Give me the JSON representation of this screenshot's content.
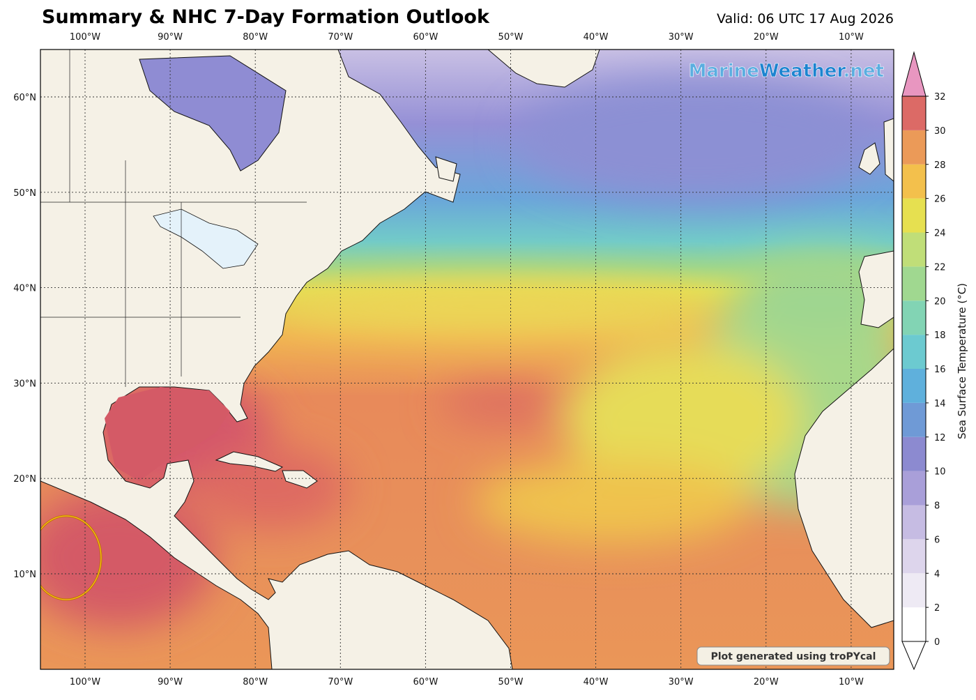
{
  "header": {
    "title": "Summary & NHC 7-Day Formation Outlook",
    "valid": "Valid: 06 UTC 17 Aug 2026"
  },
  "map": {
    "lon_labels": [
      "100°W",
      "90°W",
      "80°W",
      "70°W",
      "60°W",
      "50°W",
      "40°W",
      "30°W",
      "20°W",
      "10°W"
    ],
    "lat_labels": [
      "60°N",
      "50°N",
      "40°N",
      "30°N",
      "20°N",
      "10°N"
    ]
  },
  "colorbar": {
    "label": "Sea Surface Temperature (°C)",
    "ticks": [
      0,
      2,
      4,
      6,
      8,
      10,
      12,
      14,
      16,
      18,
      20,
      22,
      24,
      26,
      28,
      30,
      32
    ],
    "colors": [
      "#ffffff",
      "#eeeaf4",
      "#ddd5ec",
      "#c6bce3",
      "#a99fd9",
      "#8c8ad0",
      "#6f9ad6",
      "#5fb0dc",
      "#6ccad0",
      "#82d4b4",
      "#a0d890",
      "#c0de78",
      "#e6e050",
      "#f3c04c",
      "#eb9a58",
      "#dc6a66"
    ],
    "over_color": "#e896c0",
    "under_color": "#ffffff"
  },
  "watermark": {
    "parts": [
      "Marine",
      "Weather",
      ".net"
    ]
  },
  "credit": "Plot generated using troPYcal"
}
